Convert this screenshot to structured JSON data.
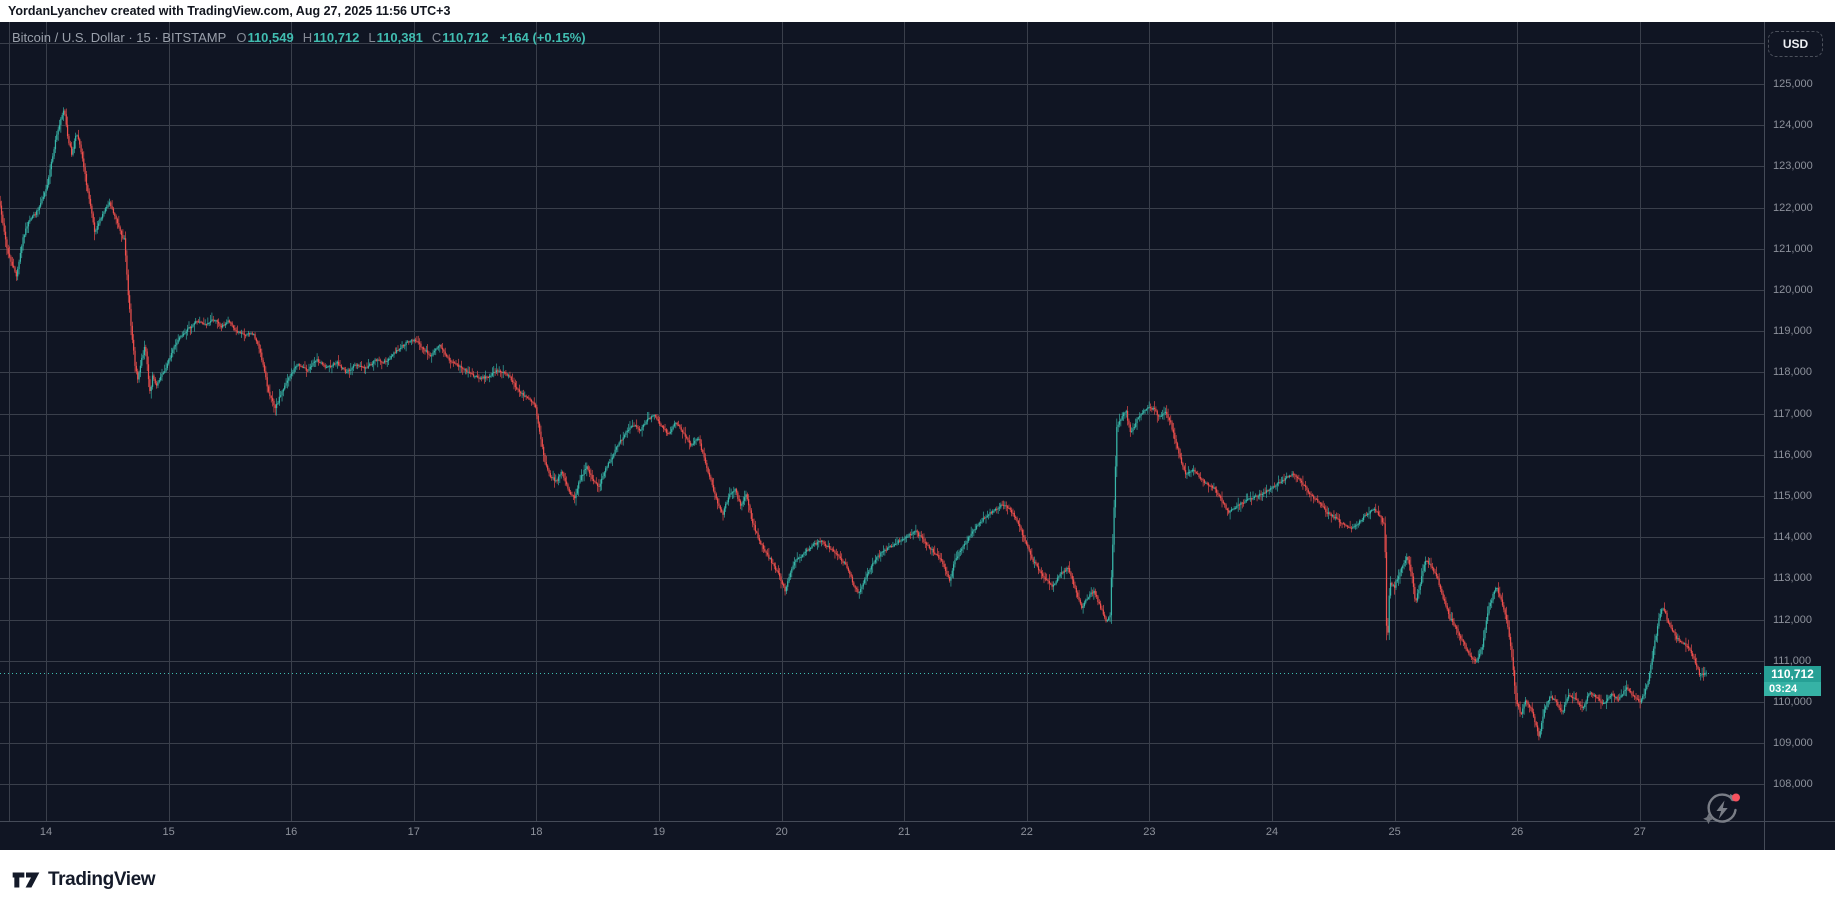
{
  "attribution": {
    "text": "YordanLyanchev created with TradingView.com, Aug 27, 2025 11:56 UTC+3"
  },
  "legend": {
    "title": "Bitcoin / U.S. Dollar · 15 · BITSTAMP",
    "o_label": "O",
    "open": "110,549",
    "h_label": "H",
    "high": "110,712",
    "l_label": "L",
    "low": "110,381",
    "c_label": "C",
    "close": "110,712",
    "change": "+164 (+0.15%)"
  },
  "axis": {
    "currency_label": "USD"
  },
  "last_price": {
    "value": "110,712",
    "countdown": "03:24"
  },
  "footer": {
    "brand": "TradingView"
  },
  "colors": {
    "background": "#101523",
    "grid": "#3a3f4b",
    "axis_text": "#8d919b",
    "up": "#38b6a9",
    "down": "#f0504d",
    "price_line": "#41bdb1",
    "badge": "#26a095",
    "badge_countdown": "#36b2a5",
    "new_dot": "#f7525f"
  },
  "chart_data": {
    "type": "candlestick",
    "title": "Bitcoin / U.S. Dollar · 15 · BITSTAMP",
    "symbol": "BTC/USD",
    "interval_minutes": 15,
    "exchange": "BITSTAMP",
    "ohlc": {
      "open": 110549,
      "high": 110712,
      "low": 110381,
      "close": 110712,
      "change": 164,
      "change_pct": 0.15
    },
    "current_price": 110712,
    "current_price_label": "110,712",
    "countdown": "03:24",
    "ylim": [
      106400,
      126500
    ],
    "grid": true,
    "y_ticks": [
      {
        "label": "125,000",
        "price": 125000
      },
      {
        "label": "124,000",
        "price": 124000
      },
      {
        "label": "123,000",
        "price": 123000
      },
      {
        "label": "122,000",
        "price": 122000
      },
      {
        "label": "121,000",
        "price": 121000
      },
      {
        "label": "120,000",
        "price": 120000
      },
      {
        "label": "119,000",
        "price": 119000
      },
      {
        "label": "118,000",
        "price": 118000
      },
      {
        "label": "117,000",
        "price": 117000
      },
      {
        "label": "116,000",
        "price": 116000
      },
      {
        "label": "115,000",
        "price": 115000
      },
      {
        "label": "114,000",
        "price": 114000
      },
      {
        "label": "113,000",
        "price": 113000
      },
      {
        "label": "112,000",
        "price": 112000
      },
      {
        "label": "111,000",
        "price": 111000
      },
      {
        "label": "110,000",
        "price": 110000
      },
      {
        "label": "109,000",
        "price": 109000
      },
      {
        "label": "108,000",
        "price": 108000
      }
    ],
    "x_ticks": [
      {
        "label": "14",
        "day": 14
      },
      {
        "label": "15",
        "day": 15
      },
      {
        "label": "16",
        "day": 16
      },
      {
        "label": "17",
        "day": 17
      },
      {
        "label": "18",
        "day": 18
      },
      {
        "label": "19",
        "day": 19
      },
      {
        "label": "20",
        "day": 20
      },
      {
        "label": "21",
        "day": 21
      },
      {
        "label": "22",
        "day": 22
      },
      {
        "label": "23",
        "day": 23
      },
      {
        "label": "24",
        "day": 24
      },
      {
        "label": "25",
        "day": 25
      },
      {
        "label": "26",
        "day": 26
      },
      {
        "label": "27",
        "day": 27
      }
    ],
    "price_path": [
      [
        13.62,
        122300
      ],
      [
        13.66,
        121600
      ],
      [
        13.7,
        120900
      ],
      [
        13.77,
        120350
      ],
      [
        13.82,
        121200
      ],
      [
        13.87,
        121700
      ],
      [
        13.94,
        121900
      ],
      [
        14.01,
        122400
      ],
      [
        14.06,
        123200
      ],
      [
        14.1,
        123800
      ],
      [
        14.13,
        124100
      ],
      [
        14.16,
        124400
      ],
      [
        14.19,
        123700
      ],
      [
        14.22,
        123300
      ],
      [
        14.26,
        123850
      ],
      [
        14.3,
        123300
      ],
      [
        14.34,
        122600
      ],
      [
        14.38,
        121900
      ],
      [
        14.41,
        121350
      ],
      [
        14.45,
        121700
      ],
      [
        14.49,
        121950
      ],
      [
        14.53,
        122100
      ],
      [
        14.57,
        121800
      ],
      [
        14.61,
        121500
      ],
      [
        14.65,
        121200
      ],
      [
        14.68,
        120000
      ],
      [
        14.71,
        118900
      ],
      [
        14.74,
        118100
      ],
      [
        14.76,
        117800
      ],
      [
        14.79,
        118300
      ],
      [
        14.82,
        118650
      ],
      [
        14.86,
        117500
      ],
      [
        14.88,
        117900
      ],
      [
        14.91,
        117650
      ],
      [
        14.95,
        117900
      ],
      [
        14.99,
        118100
      ],
      [
        15.05,
        118600
      ],
      [
        15.11,
        118900
      ],
      [
        15.17,
        119050
      ],
      [
        15.24,
        119250
      ],
      [
        15.31,
        119150
      ],
      [
        15.38,
        119300
      ],
      [
        15.44,
        119100
      ],
      [
        15.5,
        119250
      ],
      [
        15.56,
        119000
      ],
      [
        15.63,
        118900
      ],
      [
        15.7,
        118950
      ],
      [
        15.76,
        118500
      ],
      [
        15.82,
        117600
      ],
      [
        15.88,
        117100
      ],
      [
        15.93,
        117500
      ],
      [
        15.99,
        117850
      ],
      [
        16.06,
        118200
      ],
      [
        16.14,
        118050
      ],
      [
        16.22,
        118300
      ],
      [
        16.3,
        118100
      ],
      [
        16.38,
        118250
      ],
      [
        16.46,
        118000
      ],
      [
        16.54,
        118200
      ],
      [
        16.62,
        118100
      ],
      [
        16.7,
        118300
      ],
      [
        16.78,
        118250
      ],
      [
        16.86,
        118500
      ],
      [
        16.94,
        118700
      ],
      [
        17.02,
        118800
      ],
      [
        17.08,
        118600
      ],
      [
        17.15,
        118400
      ],
      [
        17.22,
        118650
      ],
      [
        17.3,
        118300
      ],
      [
        17.38,
        118150
      ],
      [
        17.46,
        118000
      ],
      [
        17.54,
        117850
      ],
      [
        17.62,
        117900
      ],
      [
        17.7,
        118050
      ],
      [
        17.78,
        117950
      ],
      [
        17.85,
        117600
      ],
      [
        17.93,
        117400
      ],
      [
        18.0,
        117200
      ],
      [
        18.04,
        116500
      ],
      [
        18.08,
        115800
      ],
      [
        18.12,
        115500
      ],
      [
        18.17,
        115350
      ],
      [
        18.22,
        115600
      ],
      [
        18.27,
        115150
      ],
      [
        18.32,
        114950
      ],
      [
        18.37,
        115450
      ],
      [
        18.42,
        115700
      ],
      [
        18.47,
        115400
      ],
      [
        18.52,
        115200
      ],
      [
        18.57,
        115650
      ],
      [
        18.62,
        115900
      ],
      [
        18.68,
        116250
      ],
      [
        18.74,
        116550
      ],
      [
        18.8,
        116750
      ],
      [
        18.86,
        116600
      ],
      [
        18.92,
        116850
      ],
      [
        18.97,
        116950
      ],
      [
        19.03,
        116700
      ],
      [
        19.09,
        116500
      ],
      [
        19.15,
        116800
      ],
      [
        19.21,
        116550
      ],
      [
        19.27,
        116200
      ],
      [
        19.33,
        116400
      ],
      [
        19.38,
        115900
      ],
      [
        19.44,
        115300
      ],
      [
        19.49,
        114800
      ],
      [
        19.53,
        114550
      ],
      [
        19.58,
        115000
      ],
      [
        19.63,
        115150
      ],
      [
        19.68,
        114750
      ],
      [
        19.72,
        115050
      ],
      [
        19.77,
        114400
      ],
      [
        19.83,
        113900
      ],
      [
        19.89,
        113600
      ],
      [
        19.95,
        113300
      ],
      [
        20.01,
        112950
      ],
      [
        20.04,
        112700
      ],
      [
        20.08,
        113150
      ],
      [
        20.13,
        113450
      ],
      [
        20.19,
        113600
      ],
      [
        20.26,
        113800
      ],
      [
        20.33,
        113900
      ],
      [
        20.4,
        113750
      ],
      [
        20.47,
        113550
      ],
      [
        20.54,
        113300
      ],
      [
        20.6,
        112850
      ],
      [
        20.64,
        112600
      ],
      [
        20.69,
        113000
      ],
      [
        20.75,
        113350
      ],
      [
        20.82,
        113600
      ],
      [
        20.89,
        113750
      ],
      [
        20.96,
        113900
      ],
      [
        21.03,
        114000
      ],
      [
        21.1,
        114150
      ],
      [
        21.16,
        113950
      ],
      [
        21.22,
        113750
      ],
      [
        21.28,
        113550
      ],
      [
        21.34,
        113300
      ],
      [
        21.38,
        112900
      ],
      [
        21.42,
        113400
      ],
      [
        21.47,
        113700
      ],
      [
        21.53,
        113950
      ],
      [
        21.6,
        114250
      ],
      [
        21.67,
        114500
      ],
      [
        21.74,
        114650
      ],
      [
        21.81,
        114800
      ],
      [
        21.87,
        114700
      ],
      [
        21.93,
        114400
      ],
      [
        21.99,
        113950
      ],
      [
        22.05,
        113500
      ],
      [
        22.11,
        113200
      ],
      [
        22.17,
        112950
      ],
      [
        22.22,
        112800
      ],
      [
        22.28,
        113100
      ],
      [
        22.35,
        113250
      ],
      [
        22.41,
        112700
      ],
      [
        22.46,
        112300
      ],
      [
        22.51,
        112550
      ],
      [
        22.56,
        112700
      ],
      [
        22.61,
        112300
      ],
      [
        22.66,
        111950
      ],
      [
        22.69,
        112100
      ],
      [
        22.72,
        114500
      ],
      [
        22.745,
        116700
      ],
      [
        22.78,
        116900
      ],
      [
        22.82,
        117050
      ],
      [
        22.86,
        116500
      ],
      [
        22.9,
        116800
      ],
      [
        22.95,
        117000
      ],
      [
        23.0,
        117150
      ],
      [
        23.05,
        117100
      ],
      [
        23.09,
        116900
      ],
      [
        23.14,
        117050
      ],
      [
        23.18,
        116800
      ],
      [
        23.22,
        116400
      ],
      [
        23.27,
        115800
      ],
      [
        23.31,
        115500
      ],
      [
        23.36,
        115650
      ],
      [
        23.42,
        115450
      ],
      [
        23.48,
        115300
      ],
      [
        23.54,
        115200
      ],
      [
        23.6,
        114900
      ],
      [
        23.66,
        114600
      ],
      [
        23.72,
        114750
      ],
      [
        23.78,
        114850
      ],
      [
        23.85,
        114950
      ],
      [
        23.92,
        115050
      ],
      [
        23.99,
        115150
      ],
      [
        24.06,
        115300
      ],
      [
        24.13,
        115450
      ],
      [
        24.19,
        115550
      ],
      [
        24.26,
        115300
      ],
      [
        24.32,
        115050
      ],
      [
        24.39,
        114850
      ],
      [
        24.46,
        114600
      ],
      [
        24.53,
        114450
      ],
      [
        24.6,
        114300
      ],
      [
        24.66,
        114200
      ],
      [
        24.72,
        114350
      ],
      [
        24.78,
        114550
      ],
      [
        24.84,
        114700
      ],
      [
        24.89,
        114500
      ],
      [
        24.93,
        114300
      ],
      [
        24.95,
        111100
      ],
      [
        24.97,
        112900
      ],
      [
        25.01,
        112800
      ],
      [
        25.06,
        113200
      ],
      [
        25.11,
        113550
      ],
      [
        25.15,
        113100
      ],
      [
        25.18,
        112400
      ],
      [
        25.22,
        112900
      ],
      [
        25.26,
        113450
      ],
      [
        25.31,
        113300
      ],
      [
        25.36,
        113000
      ],
      [
        25.41,
        112500
      ],
      [
        25.46,
        112050
      ],
      [
        25.51,
        111800
      ],
      [
        25.56,
        111500
      ],
      [
        25.62,
        111150
      ],
      [
        25.68,
        110950
      ],
      [
        25.73,
        111400
      ],
      [
        25.78,
        112300
      ],
      [
        25.84,
        112800
      ],
      [
        25.88,
        112500
      ],
      [
        25.93,
        111900
      ],
      [
        25.97,
        111100
      ],
      [
        26.0,
        110100
      ],
      [
        26.04,
        109700
      ],
      [
        26.08,
        110050
      ],
      [
        26.13,
        109800
      ],
      [
        26.17,
        109400
      ],
      [
        26.19,
        109100
      ],
      [
        26.23,
        109800
      ],
      [
        26.28,
        110150
      ],
      [
        26.33,
        110000
      ],
      [
        26.38,
        109750
      ],
      [
        26.43,
        110200
      ],
      [
        26.49,
        110050
      ],
      [
        26.55,
        109850
      ],
      [
        26.6,
        110250
      ],
      [
        26.66,
        110100
      ],
      [
        26.72,
        109950
      ],
      [
        26.78,
        110200
      ],
      [
        26.84,
        110050
      ],
      [
        26.9,
        110350
      ],
      [
        26.96,
        110150
      ],
      [
        27.02,
        110000
      ],
      [
        27.07,
        110400
      ],
      [
        27.12,
        111200
      ],
      [
        27.17,
        112100
      ],
      [
        27.2,
        112300
      ],
      [
        27.25,
        111900
      ],
      [
        27.31,
        111550
      ],
      [
        27.38,
        111400
      ],
      [
        27.44,
        111150
      ],
      [
        27.5,
        110650
      ],
      [
        27.56,
        110712
      ]
    ]
  }
}
